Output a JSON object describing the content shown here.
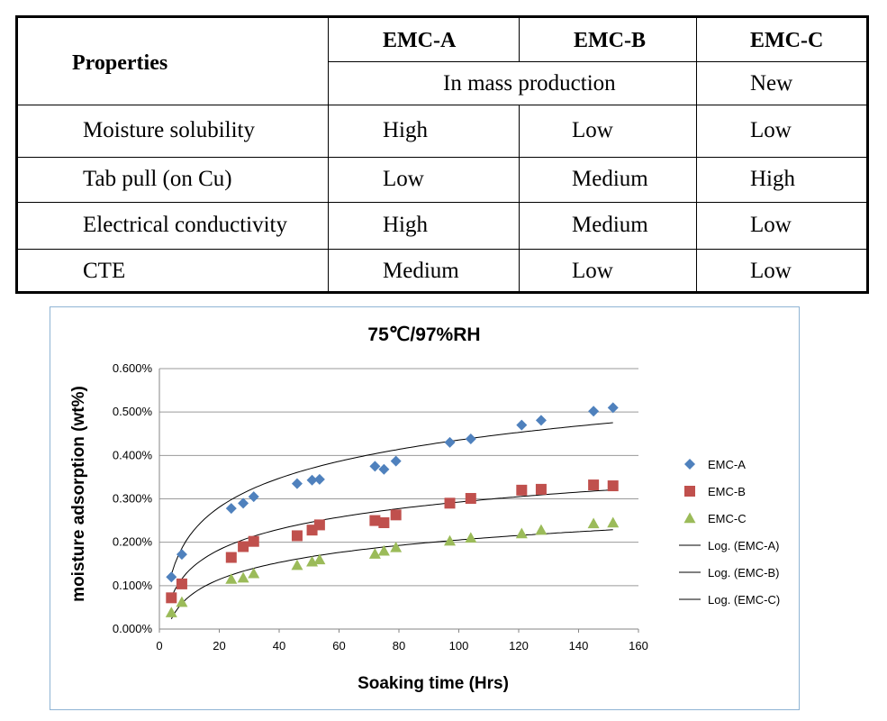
{
  "table": {
    "header_properties": "Properties",
    "columns": [
      "EMC-A",
      "EMC-B",
      "EMC-C"
    ],
    "group_mass": "In mass production",
    "group_new": "New",
    "rows": [
      {
        "property": "Moisture solubility",
        "values": [
          "High",
          "Low",
          "Low"
        ]
      },
      {
        "property": "Tab pull (on Cu)",
        "values": [
          "Low",
          "Medium",
          "High"
        ]
      },
      {
        "property": "Electrical conductivity",
        "values": [
          "High",
          "Medium",
          "Low"
        ]
      },
      {
        "property": "CTE",
        "values": [
          "Medium",
          "Low",
          "Low"
        ]
      }
    ]
  },
  "chart_data": {
    "type": "scatter",
    "title": "75℃/97%RH",
    "xlabel": "Soaking time (Hrs)",
    "ylabel": "moisture adsorption (wt%)",
    "xlim": [
      0,
      160
    ],
    "ylim": [
      0,
      0.6
    ],
    "x_ticks": [
      "0",
      "20",
      "40",
      "60",
      "80",
      "100",
      "120",
      "140",
      "160"
    ],
    "y_ticks": [
      "0.000%",
      "0.100%",
      "0.200%",
      "0.300%",
      "0.400%",
      "0.500%",
      "0.600%"
    ],
    "grid": "horizontal",
    "legend_position": "right",
    "series": [
      {
        "name": "EMC-A",
        "marker": "diamond",
        "color": "#4f81bd",
        "points": [
          [
            4,
            0.12
          ],
          [
            7.5,
            0.172
          ],
          [
            24,
            0.278
          ],
          [
            28,
            0.29
          ],
          [
            31.5,
            0.305
          ],
          [
            46,
            0.335
          ],
          [
            51,
            0.343
          ],
          [
            53.5,
            0.345
          ],
          [
            72,
            0.375
          ],
          [
            75,
            0.368
          ],
          [
            79,
            0.387
          ],
          [
            97,
            0.43
          ],
          [
            104,
            0.438
          ],
          [
            121,
            0.47
          ],
          [
            127.5,
            0.481
          ],
          [
            145,
            0.502
          ],
          [
            151.5,
            0.51
          ]
        ]
      },
      {
        "name": "EMC-B",
        "marker": "square",
        "color": "#c0504d",
        "points": [
          [
            4,
            0.072
          ],
          [
            7.5,
            0.104
          ],
          [
            24,
            0.165
          ],
          [
            28,
            0.19
          ],
          [
            31.5,
            0.202
          ],
          [
            46,
            0.215
          ],
          [
            51,
            0.228
          ],
          [
            53.5,
            0.24
          ],
          [
            72,
            0.25
          ],
          [
            75,
            0.245
          ],
          [
            79,
            0.263
          ],
          [
            97,
            0.29
          ],
          [
            104,
            0.301
          ],
          [
            121,
            0.32
          ],
          [
            127.5,
            0.322
          ],
          [
            145,
            0.332
          ],
          [
            151.5,
            0.33
          ]
        ]
      },
      {
        "name": "EMC-C",
        "marker": "triangle",
        "color": "#9bbb59",
        "points": [
          [
            4,
            0.038
          ],
          [
            7.5,
            0.062
          ],
          [
            24,
            0.115
          ],
          [
            28,
            0.118
          ],
          [
            31.5,
            0.128
          ],
          [
            46,
            0.147
          ],
          [
            51,
            0.155
          ],
          [
            53.5,
            0.16
          ],
          [
            72,
            0.173
          ],
          [
            75,
            0.18
          ],
          [
            79,
            0.188
          ],
          [
            97,
            0.203
          ],
          [
            104,
            0.21
          ],
          [
            121,
            0.22
          ],
          [
            127.5,
            0.228
          ],
          [
            145,
            0.243
          ],
          [
            151.5,
            0.245
          ]
        ]
      }
    ],
    "trendlines": [
      {
        "name": "Log. (EMC-A)",
        "type": "log",
        "a": 0.0962,
        "b": -0.0075,
        "x_range": [
          4,
          151.5
        ]
      },
      {
        "name": "Log. (EMC-B)",
        "type": "log",
        "a": 0.0682,
        "b": -0.0215,
        "x_range": [
          4,
          151.5
        ]
      },
      {
        "name": "Log. (EMC-C)",
        "type": "log",
        "a": 0.0565,
        "b": -0.0549,
        "x_range": [
          4,
          151.5
        ]
      }
    ]
  }
}
